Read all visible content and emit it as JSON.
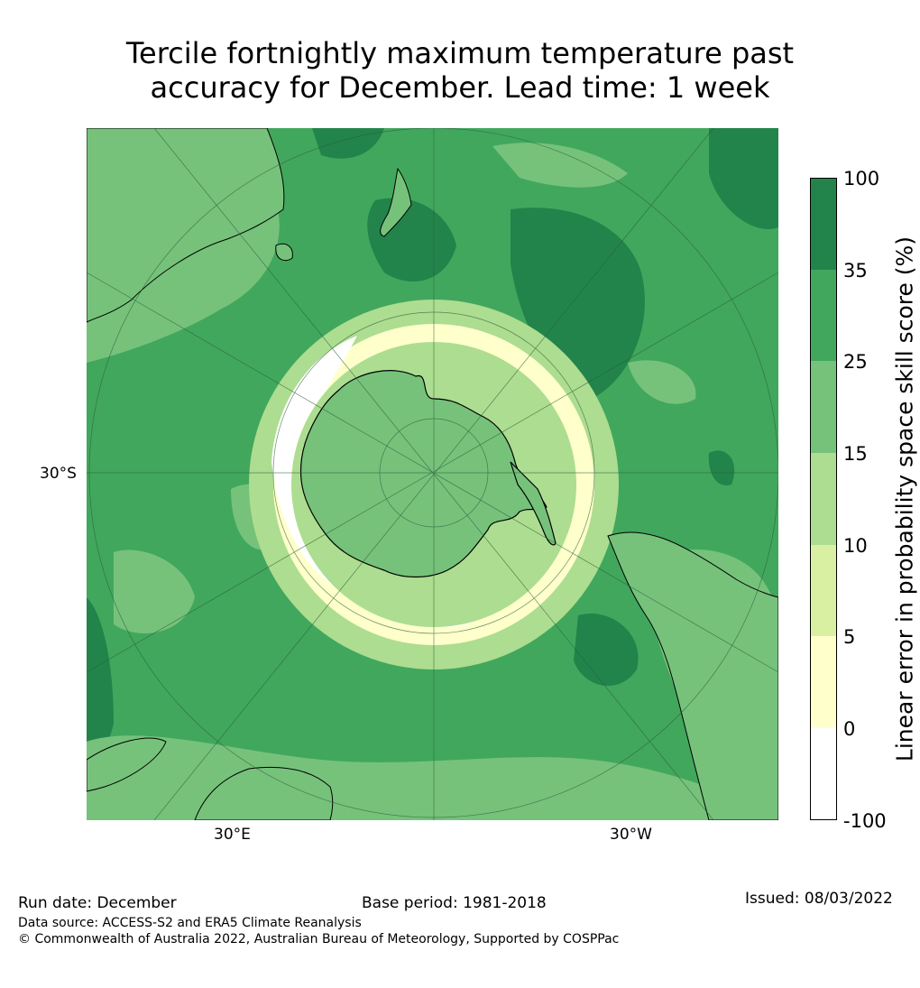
{
  "title": {
    "line1": "Tercile fortnightly maximum temperature past",
    "line2": "accuracy for December. Lead time: 1 week"
  },
  "map": {
    "projection": "south-polar-stereographic",
    "gridlines": true,
    "labels": {
      "lat": "30°S",
      "lon_left": "30°E",
      "lon_right": "30°W"
    }
  },
  "colorbar": {
    "label": "Linear error in probability space skill score (%)",
    "ticks": [
      "100",
      "35",
      "25",
      "15",
      "10",
      "5",
      "0",
      "-100"
    ],
    "bins": [
      {
        "range": "35 to 100",
        "color": "#22844a"
      },
      {
        "range": "25 to 35",
        "color": "#41a75d"
      },
      {
        "range": "15 to 25",
        "color": "#76c27b"
      },
      {
        "range": "10 to 15",
        "color": "#addd90"
      },
      {
        "range": "5 to 10",
        "color": "#d9f0a2"
      },
      {
        "range": "0 to 5",
        "color": "#ffffcb"
      },
      {
        "range": "-100 to 0",
        "color": "#ffffff"
      }
    ]
  },
  "footer": {
    "run_date": "Run date: December",
    "base_period": "Base period: 1981-2018",
    "issued": "Issued: 08/03/2022",
    "data_source": "Data source: ACCESS-S2 and ERA5 Climate Reanalysis",
    "copyright": "© Commonwealth of Australia 2022, Australian Bureau of Meteorology, Supported by COSPPac"
  }
}
